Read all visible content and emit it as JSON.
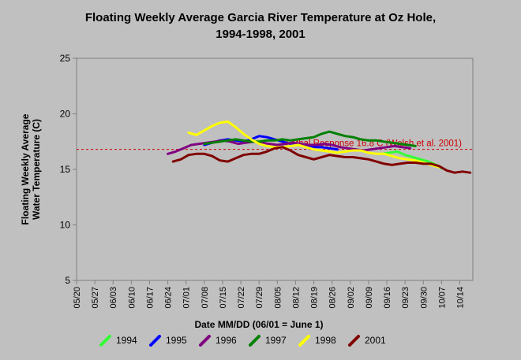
{
  "chart_data": {
    "type": "line",
    "title_line1": "Floating Weekly Average Garcia River Temperature at Oz Hole,",
    "title_line2": "1994-1998, 2001",
    "ylabel_line1": "Floating Weekly Average",
    "ylabel_line2": "Water Temperature (C)",
    "xlabel": "Date MM/DD (06/01 = June 1)",
    "ylim": [
      5,
      25
    ],
    "yticks": [
      "5",
      "10",
      "15",
      "20",
      "25"
    ],
    "xlim": [
      "05/20",
      "10/19"
    ],
    "xticks": [
      "05/20",
      "05/27",
      "06/03",
      "06/10",
      "06/17",
      "06/24",
      "07/01",
      "07/08",
      "07/15",
      "07/22",
      "07/29",
      "08/05",
      "08/12",
      "08/19",
      "08/26",
      "09/02",
      "09/09",
      "09/16",
      "09/23",
      "09/30",
      "10/07",
      "10/14"
    ],
    "grid": false,
    "threshold": {
      "value": 16.8,
      "label": "Lethal Response 16.8 C (Welsh et al. 2001)",
      "color": "#cc0000"
    },
    "series": [
      {
        "name": "1994",
        "color": "#33ff33",
        "x": [
          "09/14",
          "09/17",
          "09/20",
          "09/23",
          "09/26",
          "09/29",
          "10/02",
          "10/05",
          "10/07"
        ],
        "y": [
          16.4,
          16.5,
          16.6,
          16.3,
          16.1,
          15.9,
          15.7,
          15.4,
          15.1
        ]
      },
      {
        "name": "1995",
        "color": "#0000ff",
        "x": [
          "07/08",
          "07/11",
          "07/14",
          "07/17",
          "07/20",
          "07/23",
          "07/26",
          "07/29",
          "08/01",
          "08/04",
          "08/07",
          "08/10",
          "08/13",
          "08/16",
          "08/19",
          "08/22",
          "08/25",
          "08/28"
        ],
        "y": [
          17.2,
          17.4,
          17.6,
          17.7,
          17.6,
          17.5,
          17.7,
          18.0,
          17.9,
          17.7,
          17.5,
          17.3,
          17.2,
          17.1,
          17.0,
          17.0,
          16.9,
          16.8
        ]
      },
      {
        "name": "1996",
        "color": "#800080",
        "x": [
          "06/24",
          "06/27",
          "06/30",
          "07/03",
          "07/06",
          "07/09",
          "07/12",
          "07/15",
          "07/18",
          "07/21",
          "07/24",
          "07/27",
          "07/30",
          "08/02",
          "08/05",
          "08/08",
          "08/11",
          "08/14",
          "08/17",
          "08/20",
          "08/23",
          "08/26",
          "08/29",
          "09/01",
          "09/04",
          "09/07",
          "09/10",
          "09/13",
          "09/16",
          "09/19",
          "09/22",
          "09/25"
        ],
        "y": [
          16.4,
          16.6,
          16.9,
          17.2,
          17.3,
          17.4,
          17.5,
          17.6,
          17.5,
          17.3,
          17.4,
          17.5,
          17.4,
          17.3,
          17.2,
          17.3,
          17.4,
          17.3,
          17.2,
          17.2,
          17.3,
          17.2,
          17.0,
          16.9,
          16.8,
          16.7,
          16.8,
          16.9,
          17.0,
          17.1,
          17.0,
          16.9
        ]
      },
      {
        "name": "1997",
        "color": "#008000",
        "x": [
          "07/08",
          "07/11",
          "07/14",
          "07/17",
          "07/20",
          "07/23",
          "07/26",
          "07/29",
          "08/01",
          "08/04",
          "08/07",
          "08/10",
          "08/13",
          "08/16",
          "08/19",
          "08/22",
          "08/25",
          "08/28",
          "08/31",
          "09/03",
          "09/06",
          "09/09",
          "09/12",
          "09/15",
          "09/18",
          "09/21",
          "09/24",
          "09/27"
        ],
        "y": [
          17.3,
          17.4,
          17.5,
          17.6,
          17.7,
          17.6,
          17.5,
          17.5,
          17.6,
          17.6,
          17.7,
          17.6,
          17.7,
          17.8,
          17.9,
          18.2,
          18.4,
          18.2,
          18.0,
          17.9,
          17.7,
          17.6,
          17.6,
          17.5,
          17.4,
          17.3,
          17.2,
          17.1
        ]
      },
      {
        "name": "1998",
        "color": "#ffff00",
        "x": [
          "07/02",
          "07/05",
          "07/08",
          "07/11",
          "07/14",
          "07/17",
          "07/20",
          "07/23",
          "07/26",
          "07/29",
          "08/01",
          "08/04",
          "08/07",
          "08/10",
          "08/13",
          "08/16",
          "08/19",
          "08/22",
          "08/25",
          "08/28",
          "08/31",
          "09/03",
          "09/06",
          "09/09",
          "09/12",
          "09/15",
          "09/18",
          "09/21",
          "09/24",
          "09/27",
          "09/30",
          "10/03",
          "10/06"
        ],
        "y": [
          18.3,
          18.1,
          18.5,
          18.9,
          19.2,
          19.3,
          18.8,
          18.2,
          17.7,
          17.3,
          17.1,
          17.0,
          17.0,
          17.1,
          17.2,
          17.0,
          16.8,
          16.7,
          16.6,
          16.5,
          16.6,
          16.7,
          16.7,
          16.5,
          16.4,
          16.4,
          16.2,
          16.0,
          15.9,
          15.8,
          15.6,
          15.4,
          15.2
        ]
      },
      {
        "name": "2001",
        "color": "#800000",
        "x": [
          "06/26",
          "06/29",
          "07/02",
          "07/05",
          "07/08",
          "07/11",
          "07/14",
          "07/17",
          "07/20",
          "07/23",
          "07/26",
          "07/29",
          "08/01",
          "08/04",
          "08/07",
          "08/10",
          "08/13",
          "08/16",
          "08/19",
          "08/22",
          "08/25",
          "08/28",
          "08/31",
          "09/03",
          "09/06",
          "09/09",
          "09/12",
          "09/15",
          "09/18",
          "09/21",
          "09/24",
          "09/27",
          "09/30",
          "10/03",
          "10/06",
          "10/09",
          "10/12",
          "10/15",
          "10/18"
        ],
        "y": [
          15.7,
          15.9,
          16.3,
          16.4,
          16.4,
          16.2,
          15.8,
          15.7,
          16.0,
          16.3,
          16.4,
          16.4,
          16.6,
          16.9,
          17.0,
          16.7,
          16.3,
          16.1,
          15.9,
          16.1,
          16.3,
          16.2,
          16.1,
          16.1,
          16.0,
          15.9,
          15.7,
          15.5,
          15.4,
          15.5,
          15.6,
          15.6,
          15.5,
          15.5,
          15.3,
          14.9,
          14.7,
          14.8,
          14.7
        ]
      }
    ]
  }
}
